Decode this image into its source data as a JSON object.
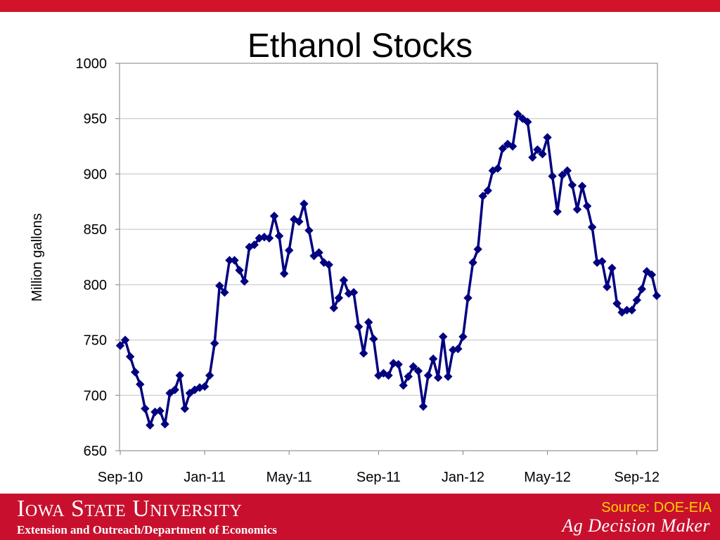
{
  "slide": {
    "title": "Ethanol Stocks",
    "footer": {
      "university": "Iowa State University",
      "department": "Extension and Outreach/Department of Economics",
      "source": "Source: DOE-EIA",
      "brand": "Ag Decision Maker"
    }
  },
  "colors": {
    "top_bar": "#d2142b",
    "footer_bar": "#c8102e",
    "series": "#000080",
    "source_text": "#ffd200"
  },
  "chart_data": {
    "type": "line",
    "title": "Ethanol Stocks",
    "xlabel": "",
    "ylabel": "Million gallons",
    "ylim": [
      650,
      1000
    ],
    "yticks": [
      650,
      700,
      750,
      800,
      850,
      900,
      950,
      1000
    ],
    "xticks": [
      "Sep-10",
      "Jan-11",
      "May-11",
      "Sep-11",
      "Jan-12",
      "May-12",
      "Sep-12"
    ],
    "grid": true,
    "legend": "none",
    "marker": "diamond",
    "series": [
      {
        "values": [
          745,
          750,
          735,
          721,
          710,
          688,
          673,
          685,
          686,
          674,
          702,
          705,
          718,
          688,
          702,
          705,
          707,
          708,
          718,
          747,
          799,
          793,
          822,
          822,
          813,
          803,
          834,
          836,
          842,
          843,
          842,
          862,
          844,
          810,
          831,
          859,
          857,
          873,
          849,
          826,
          829,
          820,
          818,
          779,
          788,
          804,
          792,
          793,
          762,
          738,
          766,
          751,
          718,
          720,
          718,
          729,
          728,
          709,
          717,
          726,
          722,
          690,
          718,
          733,
          716,
          753,
          717,
          741,
          742,
          753,
          788,
          820,
          832,
          880,
          885,
          903,
          905,
          923,
          927,
          925,
          954,
          950,
          947,
          915,
          922,
          918,
          933,
          898,
          866,
          899,
          903,
          890,
          868,
          889,
          871,
          852,
          820,
          821,
          798,
          815,
          783,
          775,
          777,
          777,
          786,
          796,
          812,
          809,
          790
        ]
      }
    ]
  }
}
